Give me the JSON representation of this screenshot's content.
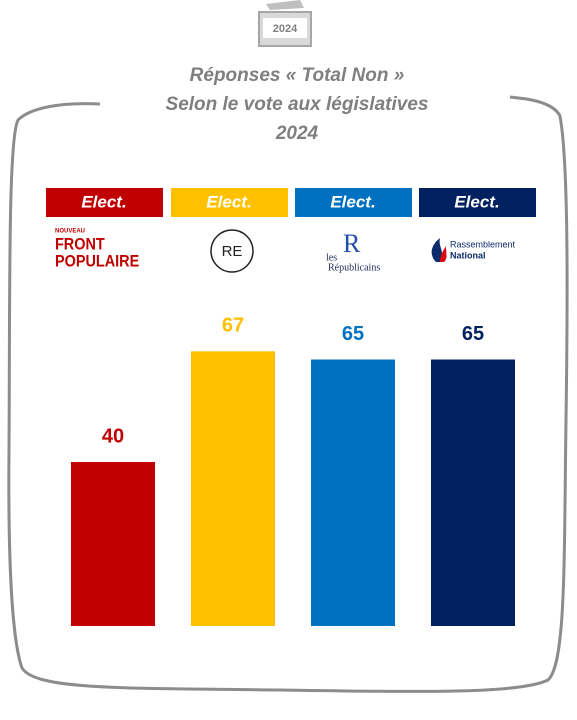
{
  "badge": "2024",
  "chart_data": {
    "type": "bar",
    "title": [
      "Réponses « Total Non »",
      "Selon le vote aux législatives",
      "2024"
    ],
    "categories": [
      "Elect.",
      "Elect.",
      "Elect.",
      "Elect."
    ],
    "logos": [
      [
        "NOUVEAU",
        "FRONT",
        "POPULAIRE"
      ],
      [
        "RE"
      ],
      [
        "les",
        "R",
        "Républicains"
      ],
      [
        "Rassemblement",
        "National"
      ]
    ],
    "values": [
      40,
      67,
      65,
      65
    ],
    "colors": [
      "#c00000",
      "#ffc000",
      "#0070c0",
      "#002060"
    ]
  }
}
